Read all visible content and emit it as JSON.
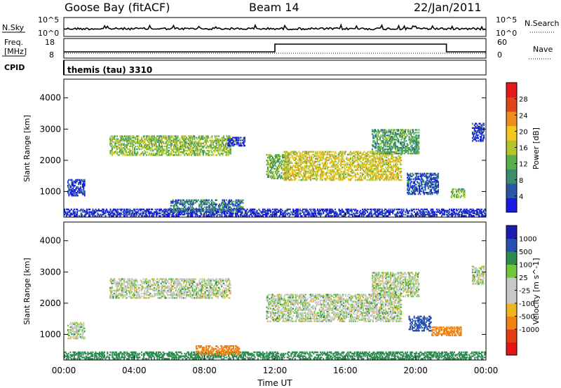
{
  "header": {
    "station": "Goose Bay (fitACF)",
    "beam": "Beam 14",
    "date": "22/Jan/2011"
  },
  "noise_panel": {
    "left_label": "N.Sky",
    "right_label": "N.Search",
    "top_tick": "10^5",
    "bottom_tick": "10^0"
  },
  "freq_panel": {
    "left_label_1": "Freq.",
    "left_label_2": "[MHz]",
    "left_ticks": [
      "18",
      "8"
    ],
    "right_label": "Nave",
    "right_ticks": [
      "60",
      "0"
    ],
    "freq_step": {
      "start_hour": 12.0,
      "end_hour": 21.75
    }
  },
  "cpid": {
    "label": "CPID",
    "program": "themis (tau) 3310"
  },
  "colors": {
    "power": [
      "#1919e6",
      "#2a55a8",
      "#3a8c6a",
      "#58b04c",
      "#b4c52a",
      "#f0c81e",
      "#f08c1e",
      "#e04616",
      "#e61919"
    ],
    "velocity": [
      "#1c1cb4",
      "#2850b4",
      "#2c8c50",
      "#6ec83c",
      "#c8c8c8",
      "#c8c8c8",
      "#f0b41e",
      "#f08214",
      "#e63c14",
      "#e61414"
    ]
  },
  "chart_data": [
    {
      "type": "heatmap",
      "title": "Power",
      "xlabel": "",
      "ylabel": "Slant Range [km]",
      "colorbar_label": "Power [dB]",
      "colorbar_ticks": [
        "28",
        "24",
        "20",
        "16",
        "12",
        "8",
        "4"
      ],
      "x_ticks": [],
      "y_ticks": [
        "1000",
        "2000",
        "3000",
        "4000"
      ],
      "xlim": [
        0,
        24
      ],
      "ylim": [
        180,
        4600
      ],
      "echo_regions": [
        {
          "t0": 0.2,
          "t1": 1.2,
          "r0": 850,
          "r1": 1400,
          "power": 6
        },
        {
          "t0": 2.6,
          "t1": 9.5,
          "r0": 2150,
          "r1": 2800,
          "power": 18
        },
        {
          "t0": 9.3,
          "t1": 10.3,
          "r0": 2450,
          "r1": 2750,
          "power": 6
        },
        {
          "t0": 11.5,
          "t1": 12.8,
          "r0": 1400,
          "r1": 2200,
          "power": 16
        },
        {
          "t0": 12.5,
          "t1": 19.2,
          "r0": 1350,
          "r1": 2300,
          "power": 22
        },
        {
          "t0": 17.5,
          "t1": 20.2,
          "r0": 2200,
          "r1": 3000,
          "power": 14
        },
        {
          "t0": 19.5,
          "t1": 21.3,
          "r0": 900,
          "r1": 1600,
          "power": 8
        },
        {
          "t0": 22.0,
          "t1": 22.8,
          "r0": 800,
          "r1": 1100,
          "power": 18
        },
        {
          "t0": 23.2,
          "t1": 23.9,
          "r0": 2600,
          "r1": 3200,
          "power": 6
        },
        {
          "t0": 0.0,
          "t1": 24.0,
          "r0": 200,
          "r1": 450,
          "power": 5
        },
        {
          "t0": 6.0,
          "t1": 10.2,
          "r0": 350,
          "r1": 750,
          "power": 10
        }
      ]
    },
    {
      "type": "heatmap",
      "title": "Velocity",
      "xlabel": "Time UT",
      "ylabel": "Slant Range [km]",
      "colorbar_label": "Velocity [m s^-1]",
      "colorbar_ticks": [
        "1000",
        "500",
        "100",
        "25",
        "-25",
        "-100",
        "-500",
        "-1000"
      ],
      "x_ticks": [
        "00:00",
        "04:00",
        "08:00",
        "12:00",
        "16:00",
        "20:00",
        "00:00"
      ],
      "y_ticks": [
        "1000",
        "2000",
        "3000",
        "4000"
      ],
      "xlim": [
        0,
        24
      ],
      "ylim": [
        180,
        4600
      ],
      "echo_regions": [
        {
          "t0": 0.2,
          "t1": 1.2,
          "r0": 850,
          "r1": 1400,
          "velocity": 0
        },
        {
          "t0": 2.6,
          "t1": 9.5,
          "r0": 2150,
          "r1": 2800,
          "velocity": 0
        },
        {
          "t0": 11.5,
          "t1": 19.2,
          "r0": 1400,
          "r1": 2300,
          "velocity": 0
        },
        {
          "t0": 17.5,
          "t1": 20.2,
          "r0": 2200,
          "r1": 3000,
          "velocity": 0
        },
        {
          "t0": 19.6,
          "t1": 20.9,
          "r0": 1100,
          "r1": 1600,
          "velocity": 150
        },
        {
          "t0": 20.9,
          "t1": 22.6,
          "r0": 950,
          "r1": 1250,
          "velocity": -200
        },
        {
          "t0": 0.0,
          "t1": 24.0,
          "r0": 200,
          "r1": 450,
          "velocity": 60
        },
        {
          "t0": 7.5,
          "t1": 10.0,
          "r0": 350,
          "r1": 650,
          "velocity": -150
        },
        {
          "t0": 23.2,
          "t1": 23.9,
          "r0": 2600,
          "r1": 3200,
          "velocity": 0
        }
      ]
    }
  ]
}
